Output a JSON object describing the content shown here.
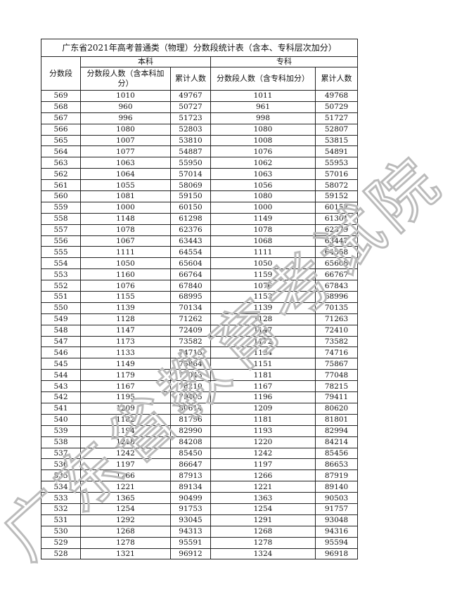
{
  "title": "广东省2021年高考普通类（物理）分数段统计表（含本、专科层次加分）",
  "headers": {
    "score": "分数段",
    "benke": "本科",
    "zhuanke": "专科",
    "benke_count": "分数段人数（含本科加分）",
    "cumulative": "累计人数",
    "zhuanke_count": "分数段人数（含专科加分）",
    "cumulative2": "累计人数"
  },
  "watermark": "广东省教育考试院",
  "rows": [
    [
      "569",
      "1010",
      "49767",
      "1011",
      "49768"
    ],
    [
      "568",
      "960",
      "50727",
      "961",
      "50729"
    ],
    [
      "567",
      "996",
      "51723",
      "998",
      "51727"
    ],
    [
      "566",
      "1080",
      "52803",
      "1080",
      "52807"
    ],
    [
      "565",
      "1007",
      "53810",
      "1008",
      "53815"
    ],
    [
      "564",
      "1077",
      "54887",
      "1076",
      "54891"
    ],
    [
      "563",
      "1063",
      "55950",
      "1062",
      "55953"
    ],
    [
      "562",
      "1064",
      "57014",
      "1063",
      "57016"
    ],
    [
      "561",
      "1055",
      "58069",
      "1056",
      "58072"
    ],
    [
      "560",
      "1081",
      "59150",
      "1080",
      "59152"
    ],
    [
      "559",
      "1000",
      "60150",
      "1000",
      "60152"
    ],
    [
      "558",
      "1148",
      "61298",
      "1149",
      "61301"
    ],
    [
      "557",
      "1078",
      "62376",
      "1078",
      "62379"
    ],
    [
      "556",
      "1067",
      "63443",
      "1068",
      "63447"
    ],
    [
      "555",
      "1111",
      "64554",
      "1111",
      "64558"
    ],
    [
      "554",
      "1050",
      "65604",
      "1050",
      "65608"
    ],
    [
      "553",
      "1160",
      "66764",
      "1159",
      "66767"
    ],
    [
      "552",
      "1076",
      "67840",
      "1076",
      "67843"
    ],
    [
      "551",
      "1155",
      "68995",
      "1153",
      "68996"
    ],
    [
      "550",
      "1139",
      "70134",
      "1139",
      "70135"
    ],
    [
      "549",
      "1128",
      "71262",
      "1128",
      "71263"
    ],
    [
      "548",
      "1147",
      "72409",
      "1147",
      "72410"
    ],
    [
      "547",
      "1173",
      "73582",
      "1172",
      "73582"
    ],
    [
      "546",
      "1133",
      "74715",
      "1134",
      "74716"
    ],
    [
      "545",
      "1149",
      "75864",
      "1151",
      "75867"
    ],
    [
      "544",
      "1179",
      "77043",
      "1181",
      "77048"
    ],
    [
      "543",
      "1167",
      "78210",
      "1167",
      "78215"
    ],
    [
      "542",
      "1195",
      "79405",
      "1196",
      "79411"
    ],
    [
      "541",
      "1209",
      "80614",
      "1209",
      "80620"
    ],
    [
      "540",
      "1182",
      "81796",
      "1181",
      "81801"
    ],
    [
      "539",
      "1194",
      "82990",
      "1193",
      "82994"
    ],
    [
      "538",
      "1218",
      "84208",
      "1220",
      "84214"
    ],
    [
      "537",
      "1242",
      "85450",
      "1242",
      "85456"
    ],
    [
      "536",
      "1197",
      "86647",
      "1197",
      "86653"
    ],
    [
      "535",
      "1266",
      "87913",
      "1266",
      "87919"
    ],
    [
      "534",
      "1221",
      "89134",
      "1221",
      "89140"
    ],
    [
      "533",
      "1365",
      "90499",
      "1363",
      "90503"
    ],
    [
      "532",
      "1254",
      "91753",
      "1254",
      "91757"
    ],
    [
      "531",
      "1292",
      "93045",
      "1291",
      "93048"
    ],
    [
      "530",
      "1268",
      "94313",
      "1268",
      "94316"
    ],
    [
      "529",
      "1278",
      "95591",
      "1278",
      "95594"
    ],
    [
      "528",
      "1321",
      "96912",
      "1324",
      "96918"
    ]
  ]
}
